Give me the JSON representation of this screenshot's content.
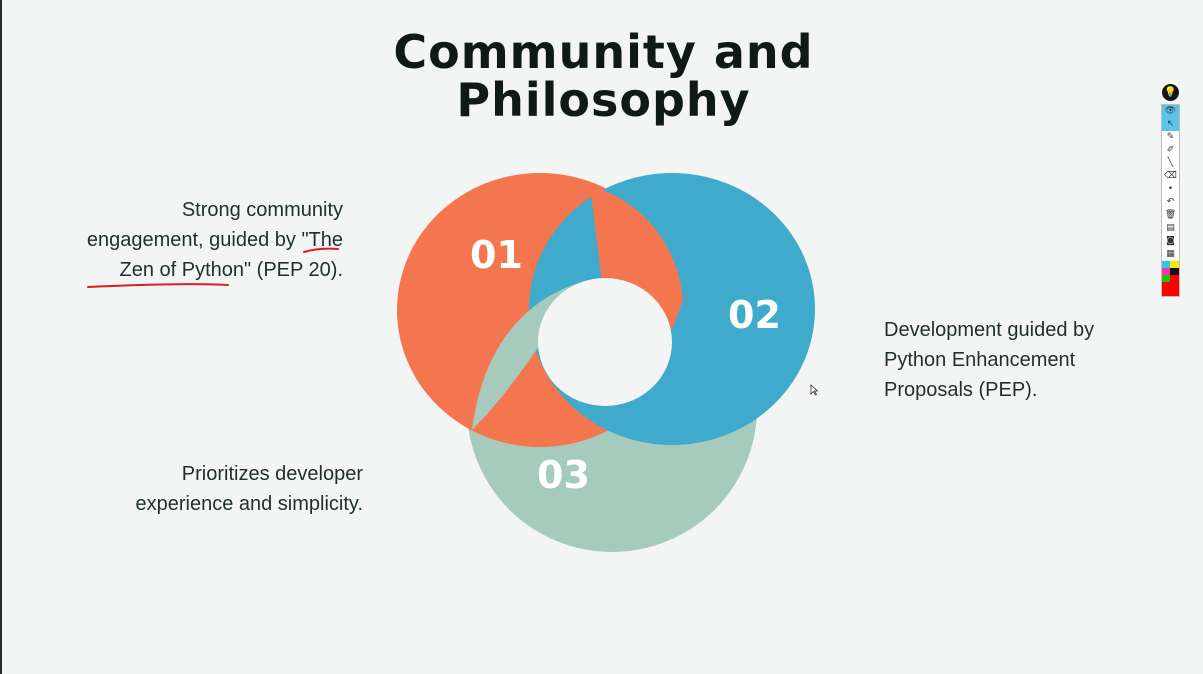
{
  "slide": {
    "title_line1": "Community and",
    "title_line2": "Philosophy"
  },
  "points": [
    {
      "number": "01",
      "color": "#f4764f",
      "lines": [
        "Strong community",
        "engagement, guided by \"The",
        "Zen of Python\" (PEP 20)."
      ]
    },
    {
      "number": "02",
      "color": "#3faacb",
      "lines": [
        "Development guided by",
        "Python Enhancement",
        "Proposals (PEP)."
      ]
    },
    {
      "number": "03",
      "color": "#a6cbbd",
      "lines": [
        "Prioritizes developer",
        "experience and simplicity."
      ]
    }
  ],
  "annotation": {
    "ink_color": "#d81f1f"
  },
  "toolbar": {
    "logo": "💡",
    "tools": [
      {
        "icon": "eye-icon",
        "glyph": "👁",
        "active": true
      },
      {
        "icon": "cursor-icon",
        "glyph": "↖",
        "active": true
      },
      {
        "icon": "pen-icon",
        "glyph": "✎",
        "active": false
      },
      {
        "icon": "highlighter-icon",
        "glyph": "✐",
        "active": false
      },
      {
        "icon": "line-icon",
        "glyph": "╲",
        "active": false
      },
      {
        "icon": "eraser-icon",
        "glyph": "⌫",
        "active": false
      },
      {
        "icon": "dot-icon",
        "glyph": "•",
        "active": false
      },
      {
        "icon": "undo-icon",
        "glyph": "↶",
        "active": false
      },
      {
        "icon": "trash-icon",
        "glyph": "🗑",
        "active": false
      },
      {
        "icon": "board-icon",
        "glyph": "▤",
        "active": false
      },
      {
        "icon": "camera-icon",
        "glyph": "◙",
        "active": false
      },
      {
        "icon": "clipboard-icon",
        "glyph": "▦",
        "active": false
      }
    ],
    "swatches": [
      "#2ec5f0",
      "#ffe600",
      "#ff2fb0",
      "#111111",
      "#1ec400",
      "#ff0000"
    ],
    "active_color": "#ff0000"
  }
}
